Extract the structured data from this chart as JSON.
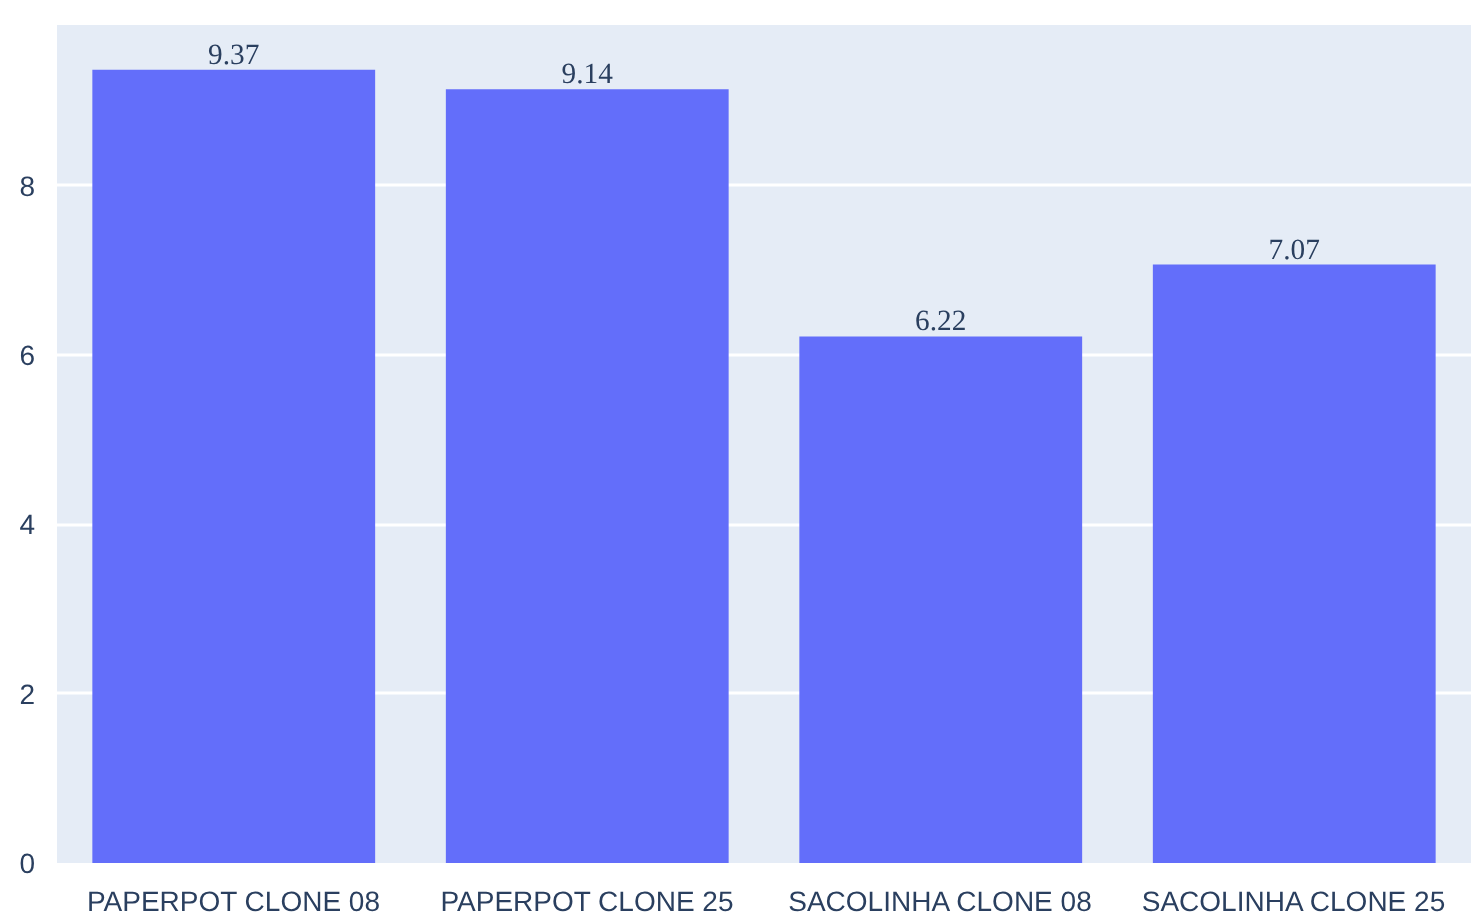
{
  "chart_data": {
    "type": "bar",
    "categories": [
      "PAPERPOT CLONE 08",
      "PAPERPOT CLONE 25",
      "SACOLINHA CLONE 08",
      "SACOLINHA CLONE 25"
    ],
    "values": [
      9.37,
      9.14,
      6.22,
      7.07
    ],
    "color": "#636efa",
    "ylim": [
      0,
      9.9
    ],
    "yticks": [
      0,
      2,
      4,
      6,
      8
    ],
    "grid": "y",
    "data_labels": true
  }
}
